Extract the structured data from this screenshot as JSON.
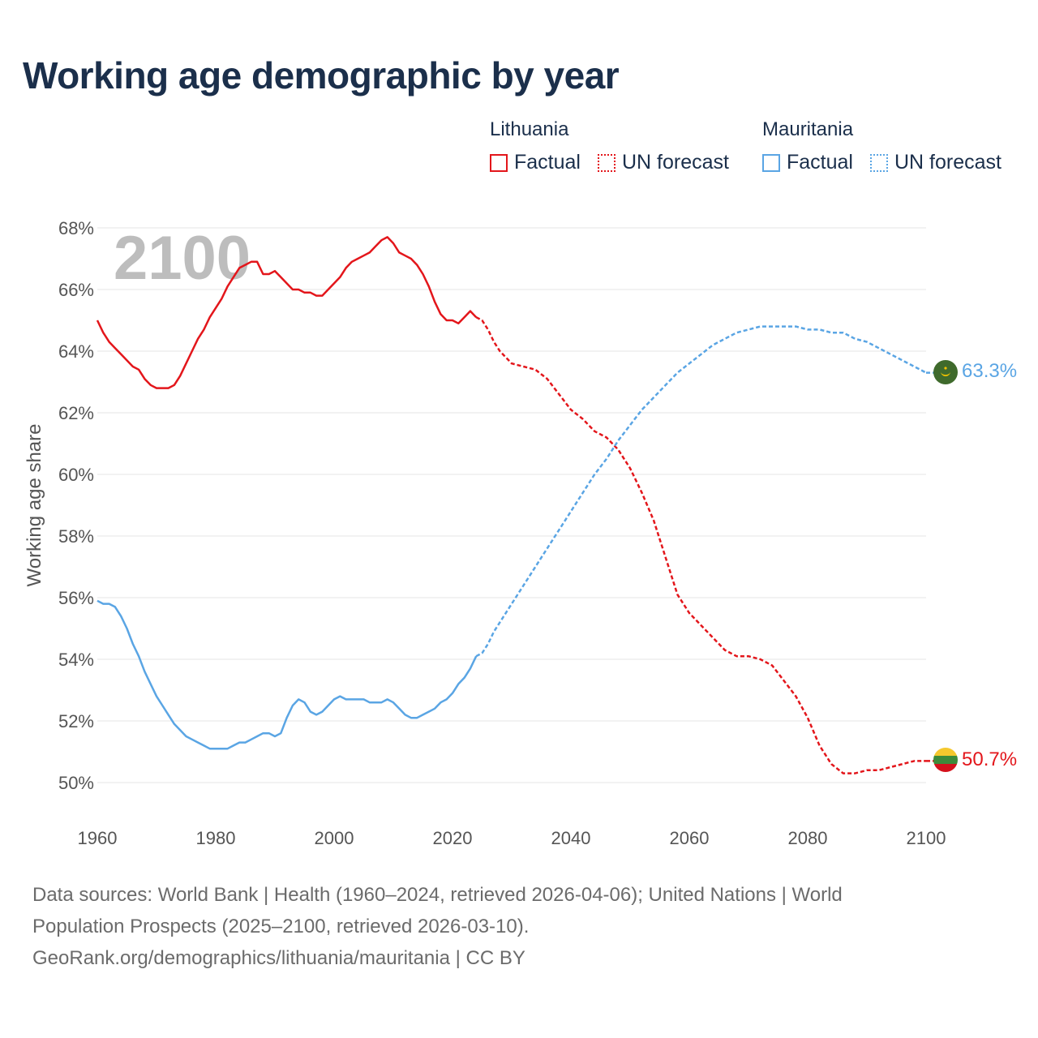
{
  "title": "Working age demographic by year",
  "legend": {
    "groups": [
      {
        "country": "Lithuania",
        "factual_label": "Factual",
        "forecast_label": "UN forecast",
        "color": "#e3161b"
      },
      {
        "country": "Mauritania",
        "factual_label": "Factual",
        "forecast_label": "UN forecast",
        "color": "#5aa5e4"
      }
    ]
  },
  "footer": {
    "line1": "Data sources: World Bank | Health (1960–2024, retrieved 2026-04-06); United Nations | World",
    "line2": "Population Prospects (2025–2100, retrieved 2026-03-10).",
    "line3": "GeoRank.org/demographics/lithuania/mauritania | CC BY"
  },
  "chart_data": {
    "type": "line",
    "title": "Working age demographic by year",
    "xlabel": "",
    "ylabel": "Working age share",
    "year_watermark": "2100",
    "xlim": [
      1960,
      2100
    ],
    "ylim": [
      49,
      69
    ],
    "x_ticks": [
      1960,
      1980,
      2000,
      2020,
      2040,
      2060,
      2080,
      2100
    ],
    "y_ticks": [
      50,
      52,
      54,
      56,
      58,
      60,
      62,
      64,
      66,
      68
    ],
    "y_tick_labels": [
      "50%",
      "52%",
      "54%",
      "56%",
      "58%",
      "60%",
      "62%",
      "64%",
      "66%",
      "68%"
    ],
    "grid": true,
    "factual_until": 2024,
    "series": [
      {
        "name": "Lithuania",
        "color": "#e3161b",
        "end_label": "50.7%",
        "x": [
          1960,
          1961,
          1962,
          1963,
          1964,
          1965,
          1966,
          1967,
          1968,
          1969,
          1970,
          1971,
          1972,
          1973,
          1974,
          1975,
          1976,
          1977,
          1978,
          1979,
          1980,
          1981,
          1982,
          1983,
          1984,
          1985,
          1986,
          1987,
          1988,
          1989,
          1990,
          1991,
          1992,
          1993,
          1994,
          1995,
          1996,
          1997,
          1998,
          1999,
          2000,
          2001,
          2002,
          2003,
          2004,
          2005,
          2006,
          2007,
          2008,
          2009,
          2010,
          2011,
          2012,
          2013,
          2014,
          2015,
          2016,
          2017,
          2018,
          2019,
          2020,
          2021,
          2022,
          2023,
          2024,
          2025,
          2026,
          2027,
          2028,
          2029,
          2030,
          2032,
          2034,
          2036,
          2038,
          2040,
          2042,
          2044,
          2046,
          2048,
          2050,
          2052,
          2054,
          2056,
          2058,
          2060,
          2062,
          2064,
          2066,
          2068,
          2070,
          2072,
          2074,
          2076,
          2078,
          2080,
          2082,
          2084,
          2086,
          2088,
          2090,
          2092,
          2094,
          2096,
          2098,
          2100
        ],
        "values": [
          65.0,
          64.6,
          64.3,
          64.1,
          63.9,
          63.7,
          63.5,
          63.4,
          63.1,
          62.9,
          62.8,
          62.8,
          62.8,
          62.9,
          63.2,
          63.6,
          64.0,
          64.4,
          64.7,
          65.1,
          65.4,
          65.7,
          66.1,
          66.4,
          66.7,
          66.8,
          66.9,
          66.9,
          66.5,
          66.5,
          66.6,
          66.4,
          66.2,
          66.0,
          66.0,
          65.9,
          65.9,
          65.8,
          65.8,
          66.0,
          66.2,
          66.4,
          66.7,
          66.9,
          67.0,
          67.1,
          67.2,
          67.4,
          67.6,
          67.7,
          67.5,
          67.2,
          67.1,
          67.0,
          66.8,
          66.5,
          66.1,
          65.6,
          65.2,
          65.0,
          65.0,
          64.9,
          65.1,
          65.3,
          65.1,
          65.0,
          64.7,
          64.3,
          64.0,
          63.8,
          63.6,
          63.5,
          63.4,
          63.1,
          62.6,
          62.1,
          61.8,
          61.4,
          61.2,
          60.8,
          60.2,
          59.4,
          58.5,
          57.3,
          56.1,
          55.5,
          55.1,
          54.7,
          54.3,
          54.1,
          54.1,
          54.0,
          53.8,
          53.3,
          52.8,
          52.1,
          51.2,
          50.6,
          50.3,
          50.3,
          50.4,
          50.4,
          50.5,
          50.6,
          50.7,
          50.7
        ]
      },
      {
        "name": "Mauritania",
        "color": "#5aa5e4",
        "end_label": "63.3%",
        "x": [
          1960,
          1961,
          1962,
          1963,
          1964,
          1965,
          1966,
          1967,
          1968,
          1969,
          1970,
          1971,
          1972,
          1973,
          1974,
          1975,
          1976,
          1977,
          1978,
          1979,
          1980,
          1981,
          1982,
          1983,
          1984,
          1985,
          1986,
          1987,
          1988,
          1989,
          1990,
          1991,
          1992,
          1993,
          1994,
          1995,
          1996,
          1997,
          1998,
          1999,
          2000,
          2001,
          2002,
          2003,
          2004,
          2005,
          2006,
          2007,
          2008,
          2009,
          2010,
          2011,
          2012,
          2013,
          2014,
          2015,
          2016,
          2017,
          2018,
          2019,
          2020,
          2021,
          2022,
          2023,
          2024,
          2025,
          2026,
          2027,
          2028,
          2030,
          2032,
          2034,
          2036,
          2038,
          2040,
          2042,
          2044,
          2046,
          2048,
          2050,
          2052,
          2054,
          2056,
          2058,
          2060,
          2062,
          2064,
          2066,
          2068,
          2070,
          2072,
          2074,
          2076,
          2078,
          2080,
          2082,
          2084,
          2086,
          2088,
          2090,
          2092,
          2094,
          2096,
          2098,
          2100
        ],
        "values": [
          55.9,
          55.8,
          55.8,
          55.7,
          55.4,
          55.0,
          54.5,
          54.1,
          53.6,
          53.2,
          52.8,
          52.5,
          52.2,
          51.9,
          51.7,
          51.5,
          51.4,
          51.3,
          51.2,
          51.1,
          51.1,
          51.1,
          51.1,
          51.2,
          51.3,
          51.3,
          51.4,
          51.5,
          51.6,
          51.6,
          51.5,
          51.6,
          52.1,
          52.5,
          52.7,
          52.6,
          52.3,
          52.2,
          52.3,
          52.5,
          52.7,
          52.8,
          52.7,
          52.7,
          52.7,
          52.7,
          52.6,
          52.6,
          52.6,
          52.7,
          52.6,
          52.4,
          52.2,
          52.1,
          52.1,
          52.2,
          52.3,
          52.4,
          52.6,
          52.7,
          52.9,
          53.2,
          53.4,
          53.7,
          54.1,
          54.2,
          54.5,
          54.9,
          55.2,
          55.8,
          56.4,
          57.0,
          57.6,
          58.2,
          58.8,
          59.4,
          60.0,
          60.5,
          61.1,
          61.6,
          62.1,
          62.5,
          62.9,
          63.3,
          63.6,
          63.9,
          64.2,
          64.4,
          64.6,
          64.7,
          64.8,
          64.8,
          64.8,
          64.8,
          64.7,
          64.7,
          64.6,
          64.6,
          64.4,
          64.3,
          64.1,
          63.9,
          63.7,
          63.5,
          63.3
        ]
      }
    ]
  }
}
